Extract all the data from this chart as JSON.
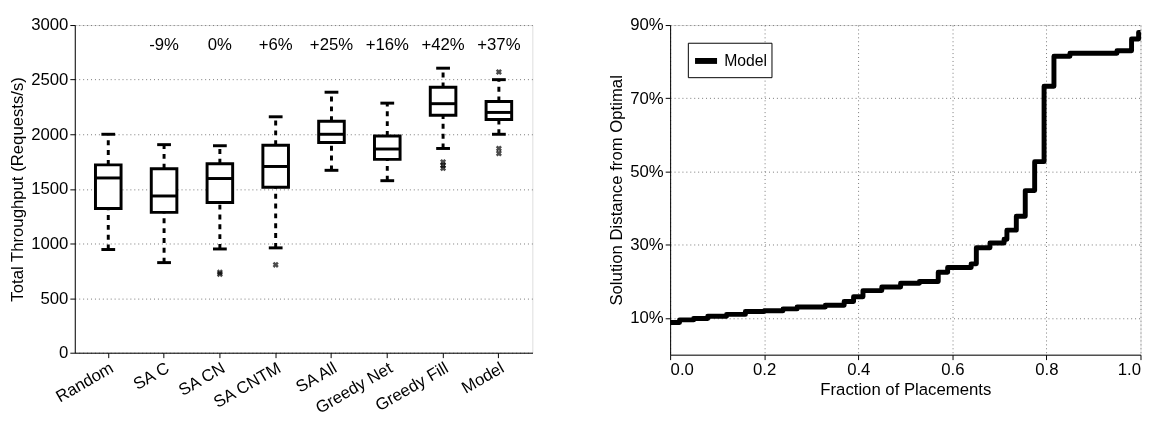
{
  "chart_data": [
    {
      "type": "box",
      "ylabel": "Total Throughput (Requests/s)",
      "categories": [
        "Random",
        "SA C",
        "SA CN",
        "SA CNTM",
        "SA All",
        "Greedy Net",
        "Greedy Fill",
        "Model"
      ],
      "boxes": [
        {
          "low": 945,
          "q1": 1320,
          "median": 1600,
          "q3": 1720,
          "high": 2000
        },
        {
          "low": 825,
          "q1": 1285,
          "median": 1435,
          "q3": 1685,
          "high": 1905
        },
        {
          "low": 950,
          "q1": 1375,
          "median": 1595,
          "q3": 1730,
          "high": 1895,
          "outliers": [
            735,
            720
          ]
        },
        {
          "low": 960,
          "q1": 1515,
          "median": 1705,
          "q3": 1900,
          "high": 2160,
          "outliers": [
            805
          ]
        },
        {
          "low": 1670,
          "q1": 1925,
          "median": 2000,
          "q3": 2120,
          "high": 2385
        },
        {
          "low": 1575,
          "q1": 1770,
          "median": 1865,
          "q3": 1985,
          "high": 2285
        },
        {
          "low": 1870,
          "q1": 2175,
          "median": 2280,
          "q3": 2430,
          "high": 2605,
          "outliers": [
            1745,
            1715,
            1690
          ]
        },
        {
          "low": 2000,
          "q1": 2135,
          "median": 2200,
          "q3": 2300,
          "high": 2500,
          "outliers": [
            2570,
            1870,
            1825
          ]
        }
      ],
      "color": "#000000",
      "ylim": [
        0,
        3000
      ],
      "yticks": [
        0,
        500,
        1000,
        1500,
        2000,
        2500,
        3000
      ],
      "grid": "y",
      "annotations": [
        "-9%",
        "0%",
        "+6%",
        "+25%",
        "+16%",
        "+42%",
        "+37%"
      ]
    },
    {
      "type": "step",
      "xlabel": "Fraction of Placements",
      "ylabel": "Solution Distance from Optimal",
      "series": [
        {
          "name": "Model",
          "color": "#000000",
          "x": [
            0.0,
            0.02,
            0.05,
            0.08,
            0.12,
            0.16,
            0.2,
            0.24,
            0.27,
            0.33,
            0.37,
            0.39,
            0.41,
            0.45,
            0.49,
            0.53,
            0.57,
            0.59,
            0.64,
            0.651,
            0.68,
            0.71,
            0.716,
            0.736,
            0.755,
            0.775,
            0.795,
            0.816,
            0.85,
            0.95,
            0.981,
            0.996,
            1.0
          ],
          "values": [
            8.8,
            9.5,
            9.9,
            10.5,
            11,
            11.8,
            12,
            12.5,
            13,
            13.5,
            14.5,
            15.8,
            17.5,
            18.5,
            19.5,
            20,
            22.5,
            23.8,
            24.8,
            29.2,
            30.5,
            31.5,
            34,
            37.8,
            44.8,
            52.7,
            73.3,
            81.5,
            82.3,
            83,
            86.2,
            88,
            88
          ]
        }
      ],
      "xlim": [
        0,
        1
      ],
      "xticks": [
        {
          "value": 0,
          "label": "0.0"
        },
        0.2,
        0.4,
        0.6,
        0.8,
        {
          "value": 1,
          "label": "1.0"
        }
      ],
      "ylim": [
        0,
        90
      ],
      "yticks": [
        {
          "value": 10,
          "label": "10%"
        },
        {
          "value": 30,
          "label": "30%"
        },
        {
          "value": 50,
          "label": "50%"
        },
        {
          "value": 70,
          "label": "70%"
        },
        {
          "value": 90,
          "label": "90%"
        }
      ],
      "grid": true,
      "legend": "top left",
      "line_style": "solid"
    }
  ]
}
